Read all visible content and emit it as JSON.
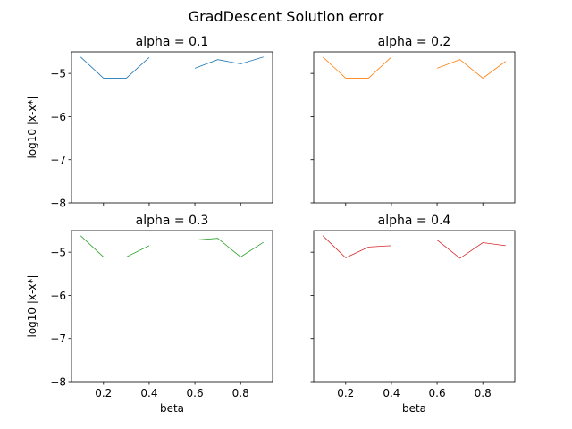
{
  "figure": {
    "title": "GradDescent Solution error"
  },
  "chart_data": [
    {
      "type": "line",
      "title": "alpha = 0.1",
      "xlabel": "",
      "ylabel": "log10 |x-x*|",
      "xlim": [
        0.06,
        0.94
      ],
      "ylim": [
        -8,
        -4.5
      ],
      "xticks": [
        0.2,
        0.4,
        0.6,
        0.8
      ],
      "xtick_labels": [
        "",
        "",
        "",
        ""
      ],
      "yticks": [
        -8,
        -7,
        -6,
        -5
      ],
      "ytick_labels": [
        "−8",
        "−7",
        "−6",
        "−5"
      ],
      "color": "#1f77b4",
      "x": [
        0.1,
        0.2,
        0.3,
        0.4,
        0.5,
        0.6,
        0.7,
        0.8,
        0.9
      ],
      "y": [
        -4.62,
        -5.11,
        -5.11,
        -4.63,
        null,
        -4.88,
        -4.68,
        -4.78,
        -4.62
      ]
    },
    {
      "type": "line",
      "title": "alpha = 0.2",
      "xlabel": "",
      "ylabel": "",
      "xlim": [
        0.06,
        0.94
      ],
      "ylim": [
        -8,
        -4.5
      ],
      "xticks": [
        0.2,
        0.4,
        0.6,
        0.8
      ],
      "xtick_labels": [
        "",
        "",
        "",
        ""
      ],
      "yticks": [
        -8,
        -7,
        -6,
        -5
      ],
      "ytick_labels": [
        "",
        "",
        "",
        ""
      ],
      "color": "#ff7f0e",
      "x": [
        0.1,
        0.2,
        0.3,
        0.4,
        0.5,
        0.6,
        0.7,
        0.8,
        0.9
      ],
      "y": [
        -4.62,
        -5.11,
        -5.11,
        -4.62,
        null,
        -4.88,
        -4.68,
        -5.11,
        -4.72
      ]
    },
    {
      "type": "line",
      "title": "alpha = 0.3",
      "xlabel": "beta",
      "ylabel": "log10 |x-x*|",
      "xlim": [
        0.06,
        0.94
      ],
      "ylim": [
        -8,
        -4.5
      ],
      "xticks": [
        0.2,
        0.4,
        0.6,
        0.8
      ],
      "xtick_labels": [
        "0.2",
        "0.4",
        "0.6",
        "0.8"
      ],
      "yticks": [
        -8,
        -7,
        -6,
        -5
      ],
      "ytick_labels": [
        "−8",
        "−7",
        "−6",
        "−5"
      ],
      "color": "#2ca02c",
      "x": [
        0.1,
        0.2,
        0.3,
        0.4,
        0.5,
        0.6,
        0.7,
        0.8,
        0.9
      ],
      "y": [
        -4.62,
        -5.11,
        -5.11,
        -4.85,
        null,
        -4.72,
        -4.68,
        -5.11,
        -4.77
      ]
    },
    {
      "type": "line",
      "title": "alpha = 0.4",
      "xlabel": "beta",
      "ylabel": "",
      "xlim": [
        0.06,
        0.94
      ],
      "ylim": [
        -8,
        -4.5
      ],
      "xticks": [
        0.2,
        0.4,
        0.6,
        0.8
      ],
      "xtick_labels": [
        "0.2",
        "0.4",
        "0.6",
        "0.8"
      ],
      "yticks": [
        -8,
        -7,
        -6,
        -5
      ],
      "ytick_labels": [
        "",
        "",
        "",
        ""
      ],
      "color": "#d62728",
      "x": [
        0.1,
        0.2,
        0.3,
        0.4,
        0.5,
        0.6,
        0.7,
        0.8,
        0.9
      ],
      "y": [
        -4.62,
        -5.13,
        -4.88,
        -4.85,
        null,
        -4.72,
        -5.14,
        -4.78,
        -4.85
      ]
    }
  ]
}
